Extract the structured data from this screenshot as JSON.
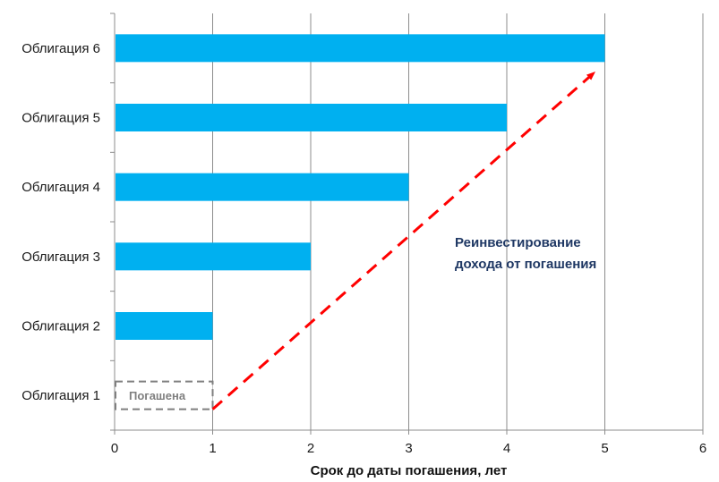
{
  "chart_data": {
    "type": "bar",
    "orientation": "horizontal",
    "categories": [
      "Облигация 1",
      "Облигация 2",
      "Облигация 3",
      "Облигация 4",
      "Облигация 5",
      "Облигация 6"
    ],
    "values": [
      1,
      1,
      2,
      3,
      4,
      5
    ],
    "xlabel": "Срок до даты погашения, лет",
    "ylabel": "",
    "xlim": [
      0,
      6
    ],
    "x_ticks": [
      "0",
      "1",
      "2",
      "3",
      "4",
      "5",
      "6"
    ],
    "grid": "vertical",
    "legend": "none",
    "bar_color": "#00B0F0",
    "repaid_bar": {
      "category": "Облигация 1",
      "label": "Погашена",
      "style": "dashed-outline",
      "color": "#7F7F7F"
    },
    "annotation": {
      "text_lines": [
        "Реинвестирование",
        "дохода от погашения"
      ],
      "color": "#1F3864",
      "arrow_color": "#FF0000",
      "arrow_from": {
        "x": 1,
        "category": "Облигация 1"
      },
      "arrow_to": {
        "x": 5,
        "category": "Облигация 6"
      }
    }
  }
}
